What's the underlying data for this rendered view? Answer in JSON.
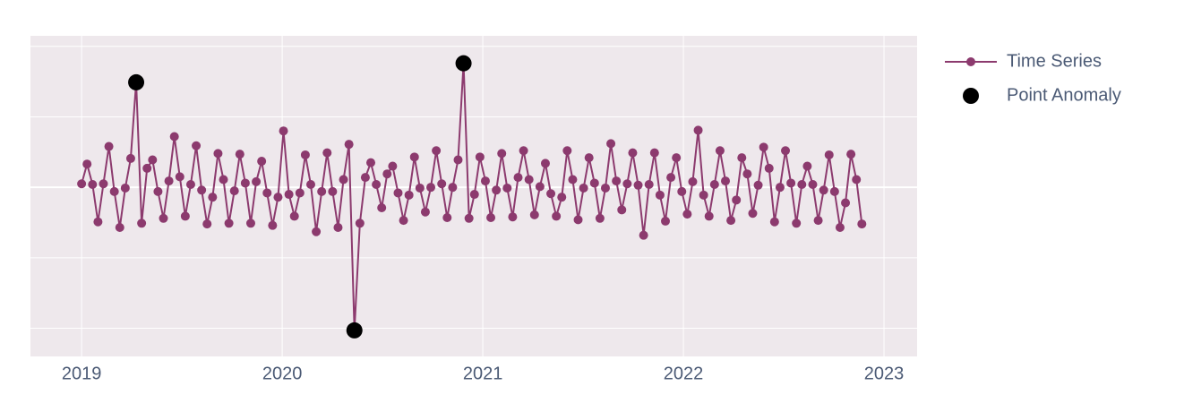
{
  "chart_data": {
    "type": "line",
    "xlim": [
      2018.745,
      2023.165
    ],
    "xticks": [
      2019,
      2020,
      2021,
      2022,
      2023
    ],
    "ylim": [
      -2.4,
      2.15
    ],
    "yticks": [
      -2,
      -1,
      0,
      1,
      2
    ],
    "grid": true,
    "legend": "outside-right",
    "series": [
      {
        "name": "Time Series",
        "color": "#8c3a6e",
        "mode": "lines+markers",
        "x": [
          2019,
          2019.0272,
          2019.0544,
          2019.0816,
          2019.1088,
          2019.136,
          2019.1632,
          2019.1904,
          2019.2176,
          2019.2448,
          2019.272,
          2019.2992,
          2019.3264,
          2019.3536,
          2019.3808,
          2019.408,
          2019.4352,
          2019.4624,
          2019.4896,
          2019.5168,
          2019.544,
          2019.5712,
          2019.5984,
          2019.6256,
          2019.6528,
          2019.68,
          2019.7072,
          2019.7344,
          2019.7616,
          2019.7888,
          2019.816,
          2019.8432,
          2019.8704,
          2019.8976,
          2019.9248,
          2019.952,
          2019.9792,
          2020.0064,
          2020.0336,
          2020.0608,
          2020.088,
          2020.1152,
          2020.1424,
          2020.1696,
          2020.1968,
          2020.224,
          2020.2512,
          2020.2784,
          2020.3056,
          2020.3328,
          2020.36,
          2020.3872,
          2020.4144,
          2020.4416,
          2020.4688,
          2020.496,
          2020.5232,
          2020.5504,
          2020.5776,
          2020.6048,
          2020.632,
          2020.6592,
          2020.6864,
          2020.7136,
          2020.7408,
          2020.768,
          2020.7952,
          2020.8224,
          2020.8496,
          2020.8768,
          2020.904,
          2020.9312,
          2020.9584,
          2020.9856,
          2021.0128,
          2021.04,
          2021.0672,
          2021.0944,
          2021.1216,
          2021.1488,
          2021.176,
          2021.2032,
          2021.2304,
          2021.2576,
          2021.2848,
          2021.312,
          2021.3392,
          2021.3664,
          2021.3936,
          2021.4208,
          2021.448,
          2021.4752,
          2021.5024,
          2021.5296,
          2021.5568,
          2021.584,
          2021.6112,
          2021.6384,
          2021.6656,
          2021.6928,
          2021.72,
          2021.7472,
          2021.7744,
          2021.8016,
          2021.8288,
          2021.856,
          2021.8832,
          2021.9104,
          2021.9376,
          2021.9648,
          2021.992,
          2022.0192,
          2022.0464,
          2022.0736,
          2022.1008,
          2022.128,
          2022.1552,
          2022.1824,
          2022.2096,
          2022.2368,
          2022.264,
          2022.2912,
          2022.3184,
          2022.3456,
          2022.3728,
          2022.4,
          2022.4272,
          2022.4544,
          2022.4816,
          2022.5088,
          2022.536,
          2022.5632,
          2022.5904,
          2022.6176,
          2022.6448,
          2022.672,
          2022.6992,
          2022.7264,
          2022.7536,
          2022.7808,
          2022.808,
          2022.8352,
          2022.8624,
          2022.8896
        ],
        "values": [
          0.05,
          0.33,
          0.04,
          -0.49,
          0.05,
          0.58,
          -0.06,
          -0.57,
          -0.01,
          0.41,
          1.49,
          -0.51,
          0.27,
          0.39,
          -0.06,
          -0.44,
          0.09,
          0.72,
          0.15,
          -0.41,
          0.04,
          0.59,
          -0.04,
          -0.52,
          -0.14,
          0.48,
          0.11,
          -0.51,
          -0.05,
          0.47,
          0.06,
          -0.51,
          0.08,
          0.37,
          -0.08,
          -0.54,
          -0.14,
          0.8,
          -0.1,
          -0.41,
          -0.08,
          0.46,
          0.04,
          -0.63,
          -0.06,
          0.49,
          -0.06,
          -0.57,
          0.11,
          0.61,
          -2.03,
          -0.51,
          0.14,
          0.35,
          0.04,
          -0.29,
          0.19,
          0.3,
          -0.08,
          -0.47,
          -0.11,
          0.43,
          -0.01,
          -0.35,
          0,
          0.52,
          0.05,
          -0.43,
          0,
          0.39,
          1.76,
          -0.44,
          -0.1,
          0.43,
          0.09,
          -0.43,
          -0.04,
          0.48,
          -0.01,
          -0.42,
          0.14,
          0.52,
          0.11,
          -0.39,
          0.01,
          0.34,
          -0.09,
          -0.41,
          -0.14,
          0.52,
          0.11,
          -0.46,
          -0.01,
          0.42,
          0.06,
          -0.44,
          -0.01,
          0.62,
          0.09,
          -0.32,
          0.05,
          0.49,
          0.03,
          -0.68,
          0.04,
          0.49,
          -0.11,
          -0.48,
          0.14,
          0.42,
          -0.06,
          -0.38,
          0.08,
          0.81,
          -0.11,
          -0.41,
          0.04,
          0.52,
          0.09,
          -0.47,
          -0.18,
          0.42,
          0.19,
          -0.37,
          0.03,
          0.57,
          0.27,
          -0.49,
          0,
          0.52,
          0.06,
          -0.51,
          0.04,
          0.3,
          0.04,
          -0.47,
          -0.04,
          0.46,
          -0.06,
          -0.57,
          -0.22,
          0.47,
          0.11,
          -0.52
        ]
      },
      {
        "name": "Point Anomaly",
        "color": "#000000",
        "mode": "markers",
        "x": [
          2019.272,
          2020.36,
          2020.904
        ],
        "values": [
          1.49,
          -2.03,
          1.76
        ]
      }
    ]
  }
}
